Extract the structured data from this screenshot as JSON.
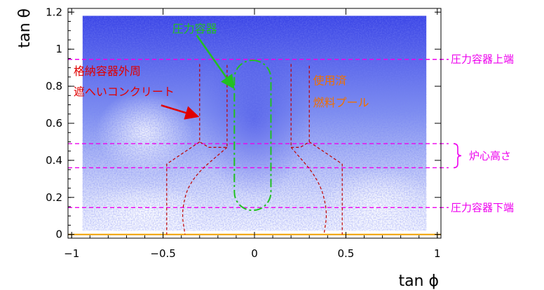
{
  "chart_data": {
    "type": "heatmap",
    "xlabel": "tan ϕ",
    "ylabel": "tan θ",
    "xlim": [
      -1.02,
      1.02
    ],
    "ylim": [
      -0.02,
      1.22
    ],
    "x_ticks": [
      -1,
      -0.5,
      0,
      0.5,
      1
    ],
    "x_tick_labels": [
      "−1",
      "−0.5",
      "0",
      "0.5",
      "1"
    ],
    "y_ticks": [
      0,
      0.2,
      0.4,
      0.6,
      0.8,
      1,
      1.2
    ],
    "y_tick_labels": [
      "0",
      "0.2",
      "0.4",
      "0.6",
      "0.8",
      "1",
      "1.2"
    ],
    "heatmap_extent": {
      "x": [
        -0.94,
        0.94
      ],
      "y": [
        0.02,
        1.18
      ]
    },
    "heatmap_gradient": {
      "low": "#ffffff",
      "mid": "#7d8ef0",
      "high": "#2f36e2",
      "description": "noisy muon-flux density map; denser (darker blue) at top and near the reactor vessel column, lighter toward the bottom"
    },
    "horizontal_lines": [
      {
        "y": 0.945,
        "label": "圧力容器上端",
        "color": "#ee00ee"
      },
      {
        "y": 0.49,
        "label": "",
        "color": "#ee00ee"
      },
      {
        "y": 0.36,
        "label": "",
        "color": "#ee00ee"
      },
      {
        "y": 0.145,
        "label": "圧力容器下端",
        "color": "#ee00ee"
      }
    ],
    "baseline": {
      "y": 0.0,
      "color": "#f0a000"
    },
    "bracket": {
      "y_range": [
        0.36,
        0.49
      ],
      "label": "炉心高さ",
      "color": "#ee00ee"
    },
    "containment_outline": {
      "color": "#c00000",
      "left_upper": [
        [
          -0.3,
          0.92
        ],
        [
          -0.3,
          0.5
        ],
        [
          -0.25,
          0.47
        ],
        [
          -0.15,
          0.47
        ],
        [
          -0.15,
          0.92
        ]
      ],
      "right_upper": [
        [
          0.2,
          0.92
        ],
        [
          0.2,
          0.47
        ],
        [
          0.25,
          0.47
        ],
        [
          0.3,
          0.5
        ],
        [
          0.3,
          0.92
        ]
      ],
      "left_outer": [
        [
          -0.3,
          0.5
        ],
        [
          -0.48,
          0.38
        ],
        [
          -0.48,
          0.0
        ]
      ],
      "right_outer": [
        [
          0.3,
          0.5
        ],
        [
          0.48,
          0.38
        ],
        [
          0.48,
          0.0
        ]
      ],
      "inner_arc_left": [
        [
          -0.15,
          0.47
        ],
        [
          -0.35,
          0.3
        ],
        [
          -0.4,
          0.13
        ],
        [
          -0.38,
          0.0
        ]
      ],
      "inner_arc_right": [
        [
          0.2,
          0.47
        ],
        [
          0.35,
          0.3
        ],
        [
          0.4,
          0.13
        ],
        [
          0.38,
          0.0
        ]
      ]
    },
    "vessel_outline": {
      "color": "#22c022",
      "x_range": [
        -0.11,
        0.09
      ],
      "y_range": [
        0.13,
        0.94
      ]
    },
    "annotations": [
      {
        "text": "圧力容器",
        "color": "#22c022",
        "at": [
          -0.45,
          1.09
        ],
        "arrow_to": [
          -0.12,
          0.8
        ]
      },
      {
        "text": "格納容器外周",
        "color": "#e00000",
        "at": [
          -0.99,
          0.86
        ],
        "arrow_to": null
      },
      {
        "text": "遮へいコンクリート",
        "color": "#e00000",
        "at": [
          -0.99,
          0.75
        ],
        "arrow_to": [
          -0.32,
          0.64
        ]
      },
      {
        "text": "使用済",
        "color": "#f07000",
        "at": [
          0.32,
          0.81
        ],
        "arrow_to": null
      },
      {
        "text": "燃料プール",
        "color": "#f07000",
        "at": [
          0.32,
          0.69
        ],
        "arrow_to": null
      }
    ]
  }
}
